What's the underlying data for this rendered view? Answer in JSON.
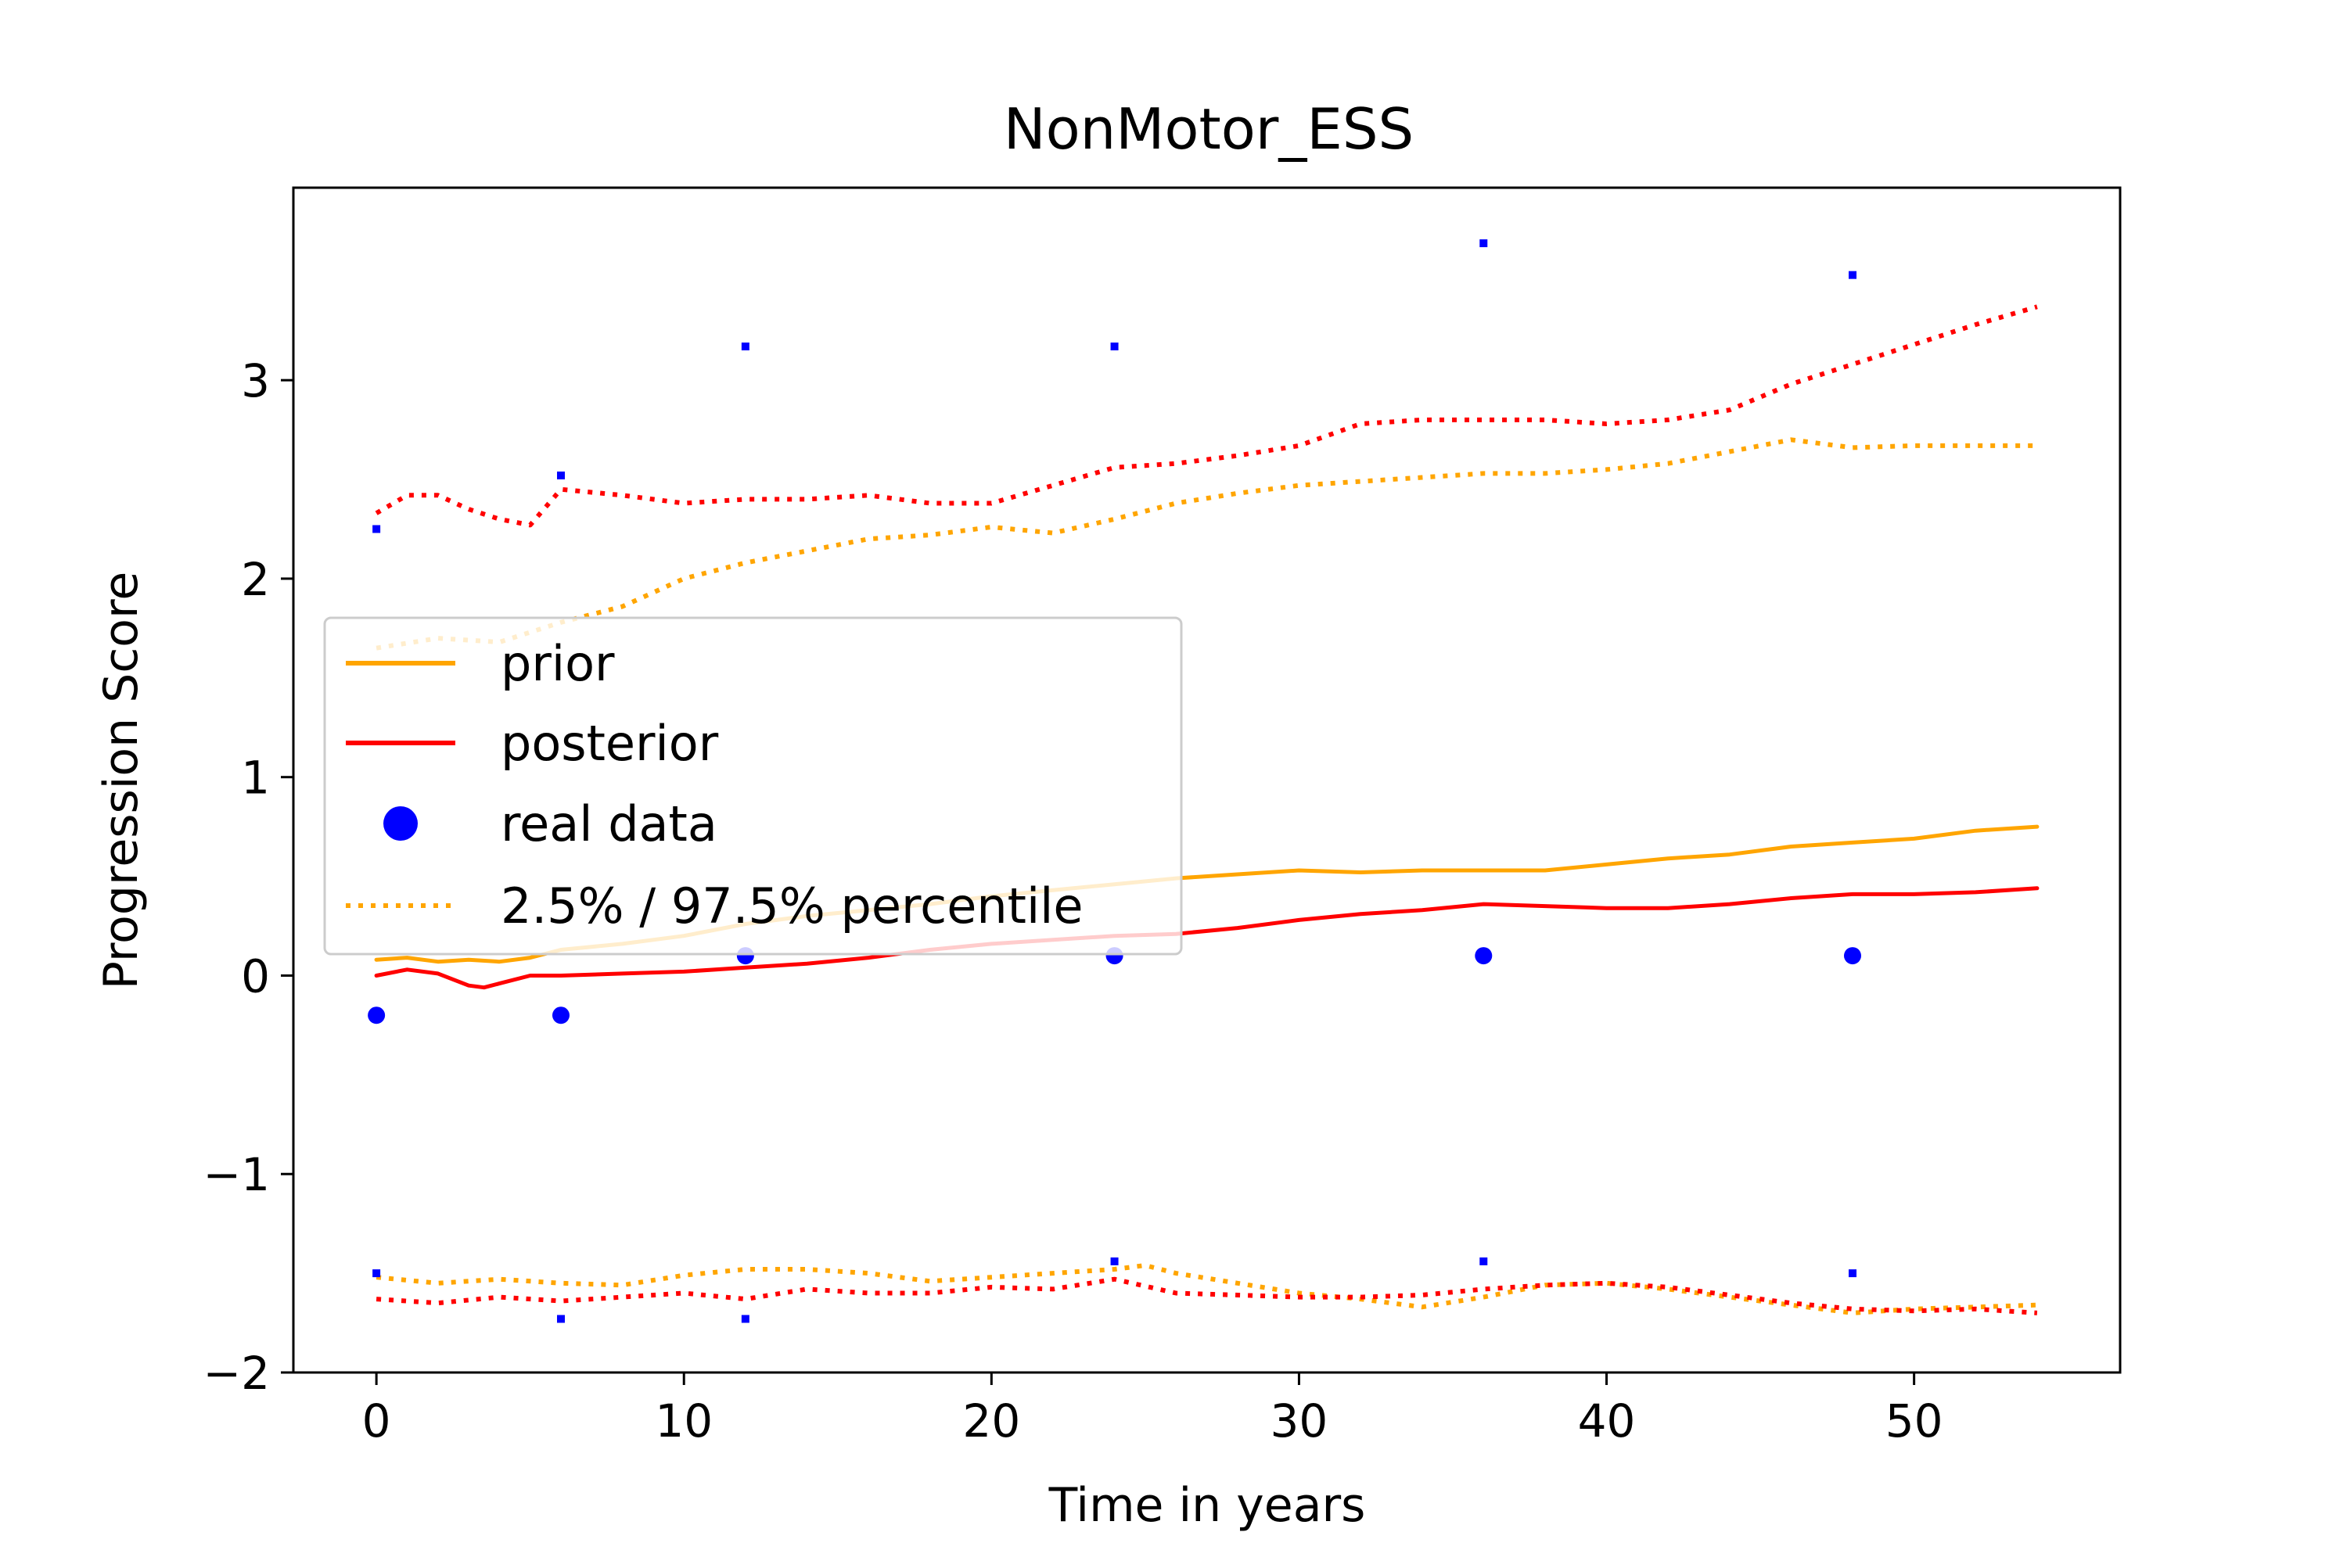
{
  "chart_data": {
    "type": "line",
    "title": "NonMotor_ESS",
    "xlabel": "Time in years",
    "ylabel": "Progression Score",
    "xlim": [
      -2.7,
      56.7
    ],
    "ylim": [
      -2.0,
      3.97
    ],
    "xticks": [
      0,
      10,
      20,
      30,
      40,
      50
    ],
    "yticks": [
      -2,
      -1,
      0,
      1,
      2,
      3
    ],
    "xtick_labels": [
      "0",
      "10",
      "20",
      "30",
      "40",
      "50"
    ],
    "ytick_labels": [
      "−2",
      "−1",
      "0",
      "1",
      "2",
      "3"
    ],
    "grid": false,
    "legend_position": "center-left",
    "legend": [
      {
        "label": "prior",
        "style": "line",
        "color": "#ffa500"
      },
      {
        "label": "posterior",
        "style": "line",
        "color": "#ff0000"
      },
      {
        "label": "real data",
        "style": "marker",
        "color": "#0000ff"
      },
      {
        "label": "2.5% / 97.5% percentile",
        "style": "dotted",
        "color": "#ffa500"
      }
    ],
    "colors": {
      "prior": "#ffa500",
      "posterior": "#ff0000",
      "real_data": "#0000ff"
    },
    "series": [
      {
        "key": "prior",
        "style": "solid",
        "color": "#ffa500",
        "x": [
          0,
          1,
          2,
          3,
          4,
          5,
          6,
          8,
          10,
          12,
          14,
          16,
          18,
          20,
          22,
          24,
          26,
          28,
          30,
          32,
          34,
          36,
          38,
          40,
          42,
          44,
          46,
          48,
          50,
          52,
          54
        ],
        "y": [
          0.08,
          0.09,
          0.07,
          0.08,
          0.07,
          0.09,
          0.13,
          0.16,
          0.2,
          0.26,
          0.3,
          0.33,
          0.36,
          0.4,
          0.43,
          0.46,
          0.49,
          0.51,
          0.53,
          0.52,
          0.53,
          0.53,
          0.53,
          0.56,
          0.59,
          0.61,
          0.65,
          0.67,
          0.69,
          0.73,
          0.75
        ]
      },
      {
        "key": "posterior",
        "style": "solid",
        "color": "#ff0000",
        "x": [
          0,
          1,
          2,
          3,
          3.5,
          4,
          5,
          6,
          8,
          10,
          12,
          14,
          16,
          18,
          20,
          22,
          24,
          26,
          28,
          30,
          32,
          34,
          36,
          38,
          40,
          42,
          44,
          46,
          48,
          50,
          52,
          54
        ],
        "y": [
          0.0,
          0.03,
          0.01,
          -0.05,
          -0.06,
          -0.04,
          0.0,
          0.0,
          0.01,
          0.02,
          0.04,
          0.06,
          0.09,
          0.13,
          0.16,
          0.18,
          0.2,
          0.21,
          0.24,
          0.28,
          0.31,
          0.33,
          0.36,
          0.35,
          0.34,
          0.34,
          0.36,
          0.39,
          0.41,
          0.41,
          0.42,
          0.44
        ]
      },
      {
        "key": "prior_upper",
        "style": "dotted",
        "color": "#ffa500",
        "x": [
          0,
          2,
          4,
          6,
          8,
          10,
          12,
          14,
          16,
          18,
          20,
          22,
          24,
          26,
          28,
          30,
          32,
          34,
          36,
          38,
          40,
          42,
          44,
          46,
          48,
          50,
          52,
          54
        ],
        "y": [
          1.65,
          1.7,
          1.68,
          1.78,
          1.86,
          2.0,
          2.08,
          2.14,
          2.2,
          2.22,
          2.26,
          2.23,
          2.3,
          2.38,
          2.43,
          2.47,
          2.49,
          2.51,
          2.53,
          2.53,
          2.55,
          2.58,
          2.64,
          2.7,
          2.66,
          2.67,
          2.67,
          2.67
        ]
      },
      {
        "key": "prior_lower",
        "style": "dotted",
        "color": "#ffa500",
        "x": [
          0,
          2,
          4,
          6,
          8,
          10,
          12,
          14,
          16,
          18,
          20,
          22,
          24,
          25,
          26,
          28,
          30,
          32,
          34,
          36,
          38,
          40,
          42,
          44,
          46,
          48,
          50,
          52,
          54
        ],
        "y": [
          -1.52,
          -1.55,
          -1.53,
          -1.55,
          -1.56,
          -1.51,
          -1.48,
          -1.48,
          -1.5,
          -1.54,
          -1.52,
          -1.5,
          -1.48,
          -1.46,
          -1.5,
          -1.55,
          -1.6,
          -1.63,
          -1.67,
          -1.62,
          -1.56,
          -1.55,
          -1.58,
          -1.62,
          -1.66,
          -1.7,
          -1.68,
          -1.67,
          -1.66
        ]
      },
      {
        "key": "posterior_upper",
        "style": "dotted",
        "color": "#ff0000",
        "x": [
          0,
          1,
          2,
          3,
          4,
          5,
          6,
          8,
          10,
          12,
          14,
          16,
          18,
          20,
          22,
          24,
          26,
          28,
          30,
          32,
          34,
          36,
          38,
          40,
          42,
          44,
          46,
          48,
          50,
          52,
          54
        ],
        "y": [
          2.33,
          2.42,
          2.42,
          2.35,
          2.3,
          2.27,
          2.45,
          2.42,
          2.38,
          2.4,
          2.4,
          2.42,
          2.38,
          2.38,
          2.47,
          2.56,
          2.58,
          2.62,
          2.67,
          2.78,
          2.8,
          2.8,
          2.8,
          2.78,
          2.8,
          2.85,
          2.98,
          3.08,
          3.18,
          3.28,
          3.37
        ]
      },
      {
        "key": "posterior_lower",
        "style": "dotted",
        "color": "#ff0000",
        "x": [
          0,
          2,
          4,
          6,
          8,
          10,
          12,
          14,
          16,
          18,
          20,
          22,
          24,
          26,
          28,
          30,
          32,
          34,
          36,
          38,
          40,
          42,
          44,
          46,
          48,
          50,
          52,
          54
        ],
        "y": [
          -1.63,
          -1.65,
          -1.62,
          -1.64,
          -1.62,
          -1.6,
          -1.63,
          -1.58,
          -1.6,
          -1.6,
          -1.57,
          -1.58,
          -1.53,
          -1.6,
          -1.61,
          -1.62,
          -1.62,
          -1.61,
          -1.58,
          -1.56,
          -1.55,
          -1.57,
          -1.61,
          -1.65,
          -1.68,
          -1.69,
          -1.68,
          -1.7
        ]
      }
    ],
    "real_data": {
      "x": [
        0,
        6,
        12,
        24,
        36,
        48
      ],
      "y": [
        -0.2,
        -0.2,
        0.1,
        0.1,
        0.1,
        0.1
      ]
    },
    "real_data_percentile_markers": {
      "x": [
        0,
        0,
        6,
        6,
        12,
        12,
        24,
        24,
        36,
        36,
        48,
        48
      ],
      "y": [
        2.25,
        -1.5,
        2.52,
        -1.73,
        3.17,
        -1.73,
        3.17,
        -1.44,
        3.69,
        -1.44,
        3.53,
        -1.5
      ]
    }
  }
}
